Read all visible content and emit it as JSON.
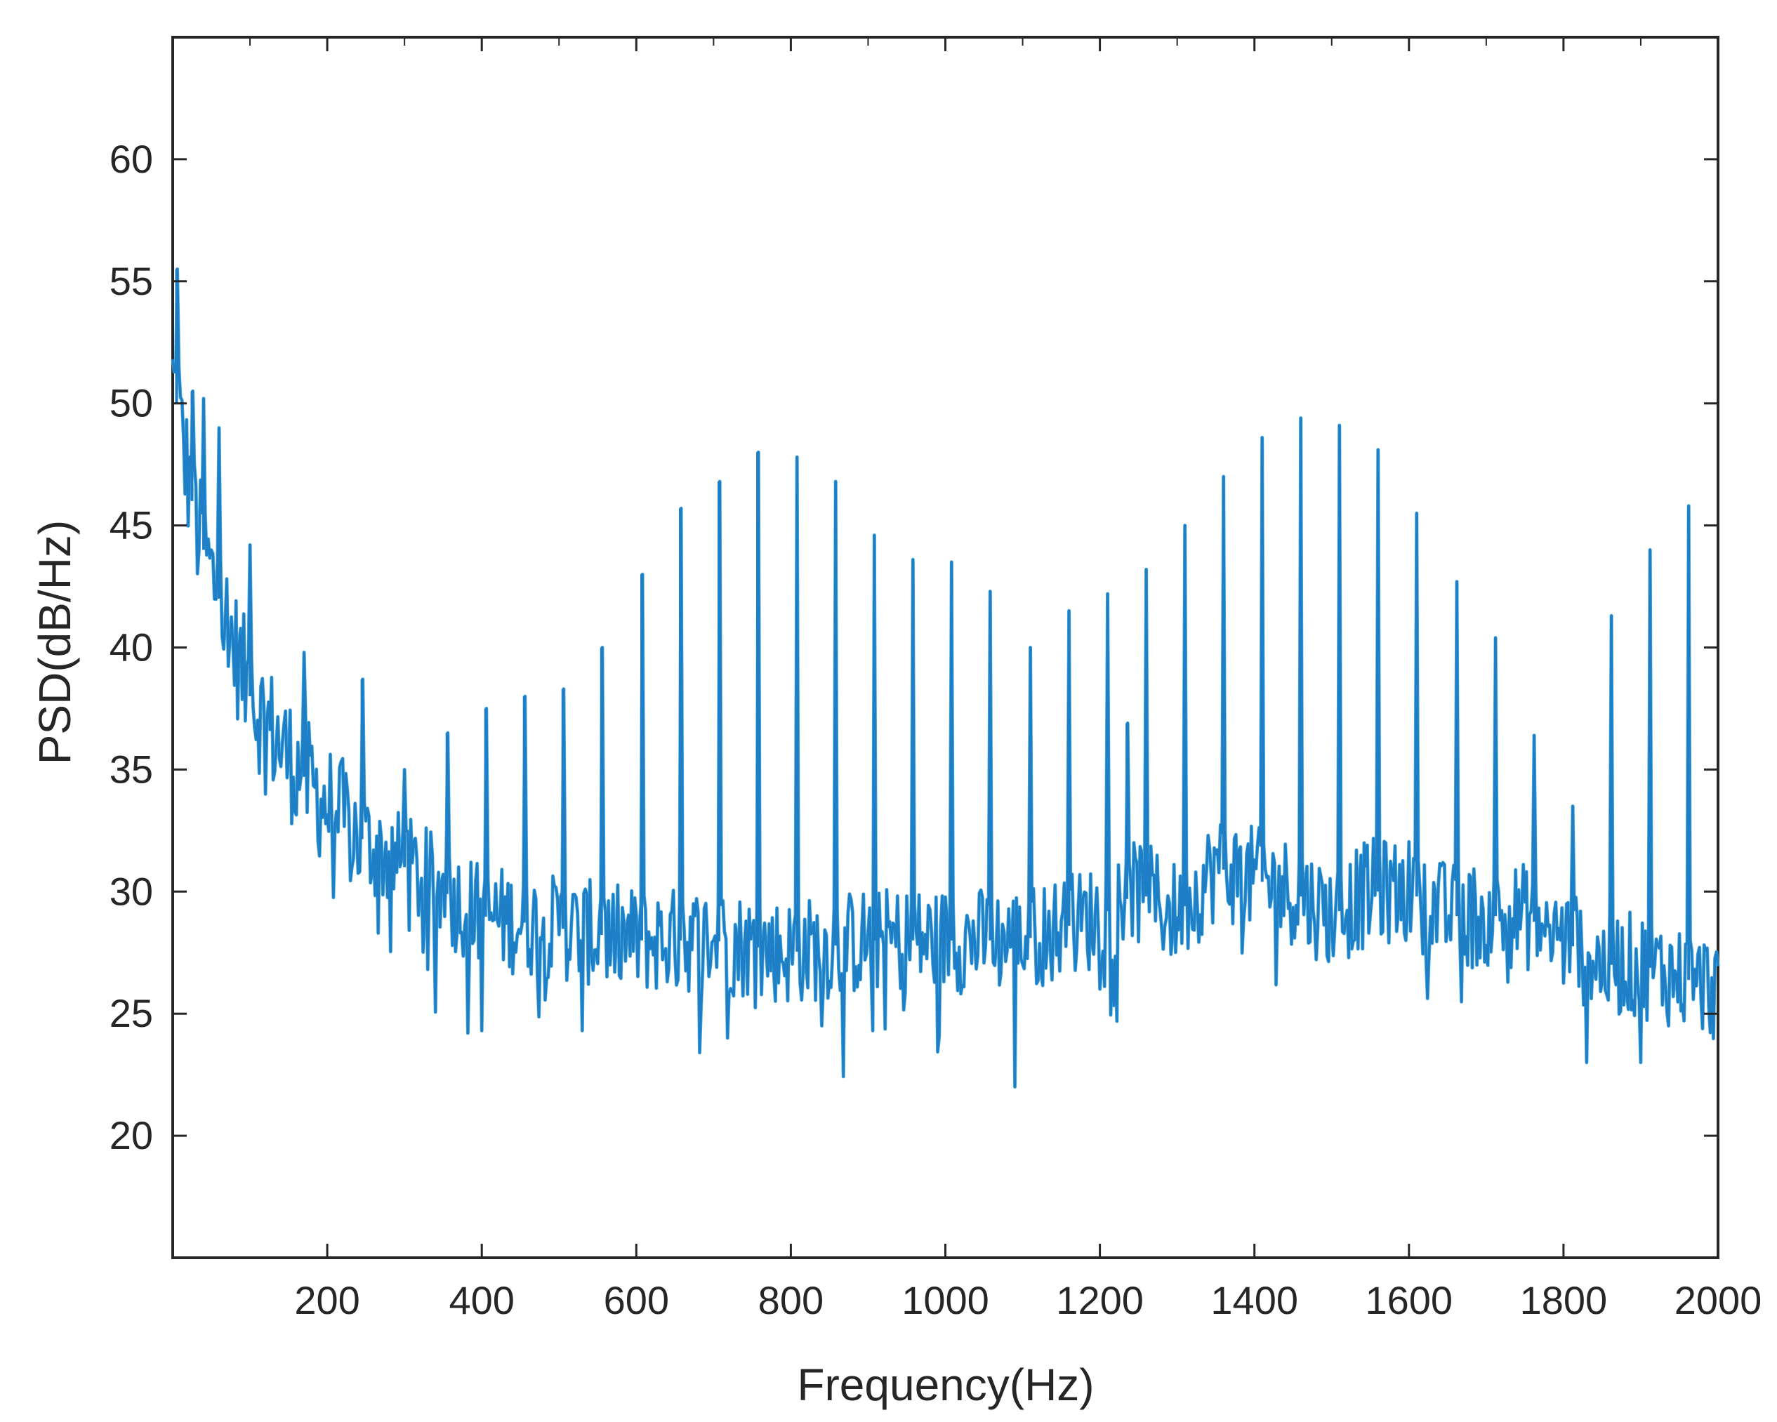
{
  "chart_data": {
    "type": "line",
    "title": "",
    "xlabel": "Frequency(Hz)",
    "ylabel": "PSD(dB/Hz)",
    "xlim": [
      0,
      2000
    ],
    "ylim": [
      15,
      65
    ],
    "x_ticks": [
      200,
      400,
      600,
      800,
      1000,
      1200,
      1400,
      1600,
      1800,
      2000
    ],
    "y_ticks": [
      20,
      25,
      30,
      35,
      40,
      45,
      50,
      55,
      60
    ],
    "x_tick_labels": [
      "200",
      "400",
      "600",
      "800",
      "1000",
      "1200",
      "1400",
      "1600",
      "1800",
      "2000"
    ],
    "y_tick_labels": [
      "20",
      "25",
      "30",
      "35",
      "40",
      "45",
      "50",
      "55",
      "60"
    ],
    "grid": false,
    "legend": "none",
    "line_color": "#1f7fc6",
    "line_color_light": "#35a4dc",
    "series": [
      {
        "baseline": [
          [
            0,
            51
          ],
          [
            30,
            45
          ],
          [
            60,
            42
          ],
          [
            100,
            38
          ],
          [
            150,
            35.5
          ],
          [
            200,
            33.5
          ],
          [
            250,
            32
          ],
          [
            300,
            31
          ],
          [
            350,
            30
          ],
          [
            400,
            29
          ],
          [
            500,
            28.5
          ],
          [
            600,
            28
          ],
          [
            700,
            28
          ],
          [
            800,
            27.5
          ],
          [
            900,
            28
          ],
          [
            1000,
            28
          ],
          [
            1100,
            28
          ],
          [
            1200,
            29
          ],
          [
            1250,
            30
          ],
          [
            1300,
            29
          ],
          [
            1350,
            31
          ],
          [
            1400,
            30.5
          ],
          [
            1450,
            30
          ],
          [
            1500,
            29
          ],
          [
            1550,
            30
          ],
          [
            1600,
            30
          ],
          [
            1650,
            29
          ],
          [
            1700,
            29
          ],
          [
            1750,
            29
          ],
          [
            1800,
            28
          ],
          [
            1850,
            27
          ],
          [
            1900,
            27
          ],
          [
            2000,
            26
          ]
        ],
        "peaks": [
          [
            5,
            55.5
          ],
          [
            25,
            50.5
          ],
          [
            40,
            50.2
          ],
          [
            60,
            49
          ],
          [
            100,
            44.2
          ],
          [
            170,
            39.8
          ],
          [
            245,
            38.7
          ],
          [
            300,
            35
          ],
          [
            355,
            36.5
          ],
          [
            405,
            37.5
          ],
          [
            455,
            38
          ],
          [
            505,
            38.3
          ],
          [
            555,
            40
          ],
          [
            607,
            43
          ],
          [
            657,
            45.7
          ],
          [
            707,
            46.8
          ],
          [
            757,
            48
          ],
          [
            808,
            47.8
          ],
          [
            858,
            46.8
          ],
          [
            908,
            44.6
          ],
          [
            958,
            43.6
          ],
          [
            1008,
            43.5
          ],
          [
            1058,
            42.3
          ],
          [
            1110,
            40
          ],
          [
            1160,
            41.5
          ],
          [
            1210,
            42.2
          ],
          [
            1235,
            36.9
          ],
          [
            1260,
            43.2
          ],
          [
            1310,
            45
          ],
          [
            1360,
            47
          ],
          [
            1410,
            48.6
          ],
          [
            1460,
            49.4
          ],
          [
            1510,
            49.1
          ],
          [
            1560,
            48.1
          ],
          [
            1610,
            45.5
          ],
          [
            1662,
            42.7
          ],
          [
            1712,
            40.4
          ],
          [
            1762,
            36.4
          ],
          [
            1812,
            33.5
          ],
          [
            1862,
            41.3
          ],
          [
            1912,
            44
          ],
          [
            1962,
            45.8
          ]
        ],
        "dips": [
          [
            1090,
            22
          ],
          [
            905,
            24.3
          ],
          [
            718,
            24
          ],
          [
            840,
            24.5
          ],
          [
            400,
            24.3
          ],
          [
            530,
            24.3
          ],
          [
            1830,
            23
          ],
          [
            1900,
            23
          ]
        ]
      }
    ]
  }
}
